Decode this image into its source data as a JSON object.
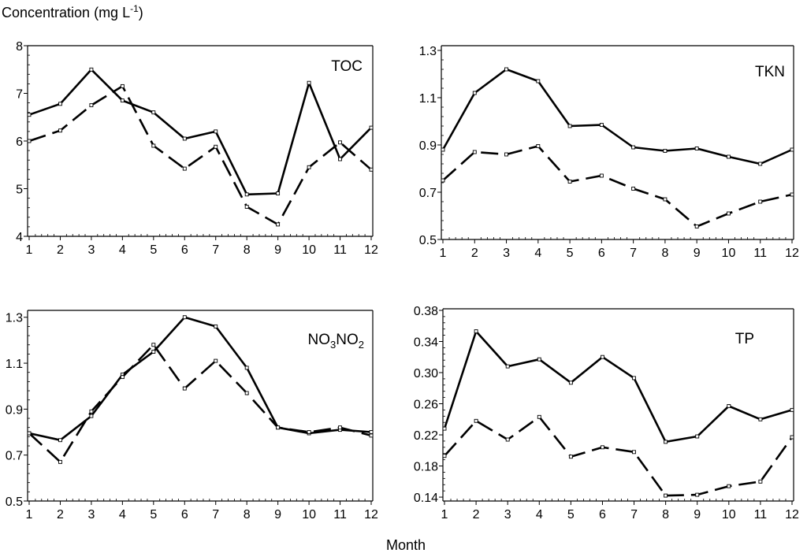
{
  "figure": {
    "ylabel": "Concentration (mg L",
    "ylabel_sup": "-1",
    "ylabel_close": ")",
    "xlabel": "Month"
  },
  "chart_data": [
    {
      "type": "line",
      "title": "TOC",
      "title_parts": [
        {
          "text": "TOC",
          "sub": false
        }
      ],
      "x": [
        1,
        2,
        3,
        4,
        5,
        6,
        7,
        8,
        9,
        10,
        11,
        12
      ],
      "xticks": [
        1,
        2,
        3,
        4,
        5,
        6,
        7,
        8,
        9,
        10,
        11,
        12
      ],
      "ylim": [
        4,
        8
      ],
      "yticks": [
        4,
        5,
        6,
        7,
        8
      ],
      "ytick_labels": [
        "4",
        "5",
        "6",
        "7",
        "8"
      ],
      "series": [
        {
          "name": "solid",
          "style": "solid",
          "values": [
            6.55,
            6.78,
            7.5,
            6.85,
            6.6,
            6.05,
            6.2,
            4.88,
            4.9,
            7.22,
            5.62,
            6.28
          ]
        },
        {
          "name": "dashed",
          "style": "dashed",
          "values": [
            6.0,
            6.22,
            6.75,
            7.15,
            5.9,
            5.42,
            5.88,
            4.62,
            4.25,
            5.45,
            5.97,
            5.4
          ]
        }
      ]
    },
    {
      "type": "line",
      "title": "TKN",
      "title_parts": [
        {
          "text": "TKN",
          "sub": false
        }
      ],
      "x": [
        1,
        2,
        3,
        4,
        5,
        6,
        7,
        8,
        9,
        10,
        11,
        12
      ],
      "xticks": [
        1,
        2,
        3,
        4,
        5,
        6,
        7,
        8,
        9,
        10,
        11,
        12
      ],
      "ylim": [
        0.5,
        1.32
      ],
      "yticks": [
        0.5,
        0.7,
        0.9,
        1.1,
        1.3
      ],
      "ytick_labels": [
        "0.5",
        "0.7",
        "0.9",
        "1.1",
        "1.3"
      ],
      "series": [
        {
          "name": "solid",
          "style": "solid",
          "values": [
            0.88,
            1.12,
            1.22,
            1.17,
            0.98,
            0.985,
            0.89,
            0.875,
            0.885,
            0.85,
            0.82,
            0.88
          ]
        },
        {
          "name": "dashed",
          "style": "dashed",
          "values": [
            0.75,
            0.87,
            0.86,
            0.895,
            0.745,
            0.77,
            0.715,
            0.67,
            0.555,
            0.61,
            0.66,
            0.69
          ]
        }
      ]
    },
    {
      "type": "line",
      "title": "NO3NO2",
      "title_parts": [
        {
          "text": "NO",
          "sub": false
        },
        {
          "text": "3",
          "sub": true
        },
        {
          "text": "NO",
          "sub": false
        },
        {
          "text": "2",
          "sub": true
        }
      ],
      "x": [
        1,
        2,
        3,
        4,
        5,
        6,
        7,
        8,
        9,
        10,
        11,
        12
      ],
      "xticks": [
        1,
        2,
        3,
        4,
        5,
        6,
        7,
        8,
        9,
        10,
        11,
        12
      ],
      "ylim": [
        0.5,
        1.33
      ],
      "yticks": [
        0.5,
        0.7,
        0.9,
        1.1,
        1.3
      ],
      "ytick_labels": [
        "0.5",
        "0.7",
        "0.9",
        "1.1",
        "1.3"
      ],
      "series": [
        {
          "name": "solid",
          "style": "solid",
          "values": [
            0.795,
            0.765,
            0.87,
            1.05,
            1.15,
            1.3,
            1.26,
            1.08,
            0.82,
            0.795,
            0.81,
            0.8
          ]
        },
        {
          "name": "dashed",
          "style": "dashed",
          "values": [
            0.795,
            0.67,
            0.89,
            1.04,
            1.18,
            0.99,
            1.11,
            0.97,
            0.82,
            0.8,
            0.82,
            0.785
          ]
        }
      ]
    },
    {
      "type": "line",
      "title": "TP",
      "title_parts": [
        {
          "text": "TP",
          "sub": false
        }
      ],
      "x": [
        1,
        2,
        3,
        4,
        5,
        6,
        7,
        8,
        9,
        10,
        11,
        12
      ],
      "xticks": [
        1,
        2,
        3,
        4,
        5,
        6,
        7,
        8,
        9,
        10,
        11,
        12
      ],
      "ylim": [
        0.135,
        0.382
      ],
      "yticks": [
        0.14,
        0.18,
        0.22,
        0.26,
        0.3,
        0.34,
        0.38
      ],
      "ytick_labels": [
        "0.14",
        "0.18",
        "0.22",
        "0.26",
        "0.30",
        "0.34",
        "0.38"
      ],
      "series": [
        {
          "name": "solid",
          "style": "solid",
          "values": [
            0.228,
            0.353,
            0.308,
            0.317,
            0.287,
            0.32,
            0.293,
            0.211,
            0.218,
            0.257,
            0.24,
            0.252
          ]
        },
        {
          "name": "dashed",
          "style": "dashed",
          "values": [
            0.193,
            0.238,
            0.214,
            0.243,
            0.192,
            0.204,
            0.198,
            0.142,
            0.143,
            0.154,
            0.16,
            0.217
          ]
        }
      ]
    }
  ]
}
